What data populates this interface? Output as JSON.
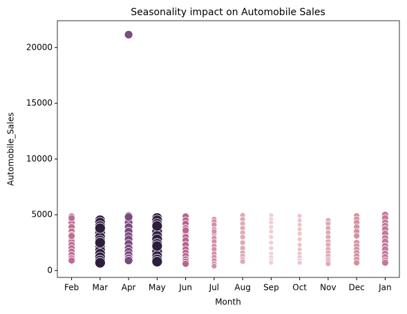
{
  "chart_data": {
    "type": "scatter",
    "title": "Seasonality impact on Automobile Sales",
    "xlabel": "Month",
    "ylabel": "Automobile_Sales",
    "categories": [
      "Feb",
      "Mar",
      "Apr",
      "May",
      "Jun",
      "Jul",
      "Aug",
      "Sep",
      "Oct",
      "Nov",
      "Dec",
      "Jan"
    ],
    "values": [
      [
        4850,
        4600,
        4300,
        3900,
        3500,
        3200,
        2900,
        2600,
        2300,
        2000,
        1700,
        1400,
        1100,
        900,
        4700,
        3100
      ],
      [
        4500,
        4300,
        4000,
        3700,
        3400,
        3000,
        2700,
        2400,
        2100,
        1800,
        1500,
        1200,
        900,
        700,
        2500,
        3800
      ],
      [
        21150,
        4900,
        4600,
        4300,
        3900,
        3500,
        3100,
        2800,
        2400,
        2000,
        1700,
        1400,
        1100,
        900,
        4800
      ],
      [
        4700,
        4500,
        4200,
        3900,
        3500,
        3100,
        2800,
        2400,
        2000,
        1700,
        1300,
        1000,
        800,
        4000,
        2200
      ],
      [
        4850,
        4500,
        4200,
        3800,
        3400,
        3000,
        2700,
        2300,
        1900,
        1600,
        1300,
        1000,
        800,
        600,
        3600
      ],
      [
        4600,
        4400,
        4100,
        3700,
        3300,
        2900,
        2600,
        2200,
        1900,
        1500,
        1200,
        900,
        600,
        400,
        3500
      ],
      [
        4950,
        4600,
        4200,
        3800,
        3400,
        3000,
        2500,
        2000,
        1600,
        1300,
        1000,
        800
      ],
      [
        4950,
        4600,
        4300,
        3900,
        3500,
        3000,
        2500,
        2000,
        1500,
        1200,
        900,
        700
      ],
      [
        4900,
        4500,
        4100,
        3700,
        3300,
        2800,
        2300,
        1900,
        1500,
        1200,
        900,
        700
      ],
      [
        4500,
        4200,
        3800,
        3400,
        3000,
        2600,
        2300,
        1900,
        1600,
        1300,
        1000,
        800,
        600
      ],
      [
        4900,
        4600,
        4300,
        3900,
        3500,
        3100,
        2500,
        2200,
        1900,
        1600,
        1300,
        1000,
        700
      ],
      [
        5000,
        4700,
        4300,
        4000,
        3700,
        3300,
        2900,
        2600,
        2200,
        1900,
        1500,
        1200,
        900,
        700
      ]
    ],
    "colors": [
      "#c06c94",
      "#2d1e3e",
      "#7d4a7f",
      "#2d1e3e",
      "#b9648f",
      "#d18faa",
      "#dfa9b5",
      "#efd0d2",
      "#ebc5ca",
      "#dfa9b5",
      "#d3919f",
      "#c8769a"
    ],
    "marker_sizes": [
      5,
      7.5,
      6,
      7.5,
      5,
      4,
      4,
      3.5,
      3.5,
      4,
      4.5,
      5
    ],
    "ylim": [
      -620,
      22400
    ],
    "yticks": [
      0,
      5000,
      10000,
      15000,
      20000
    ]
  }
}
